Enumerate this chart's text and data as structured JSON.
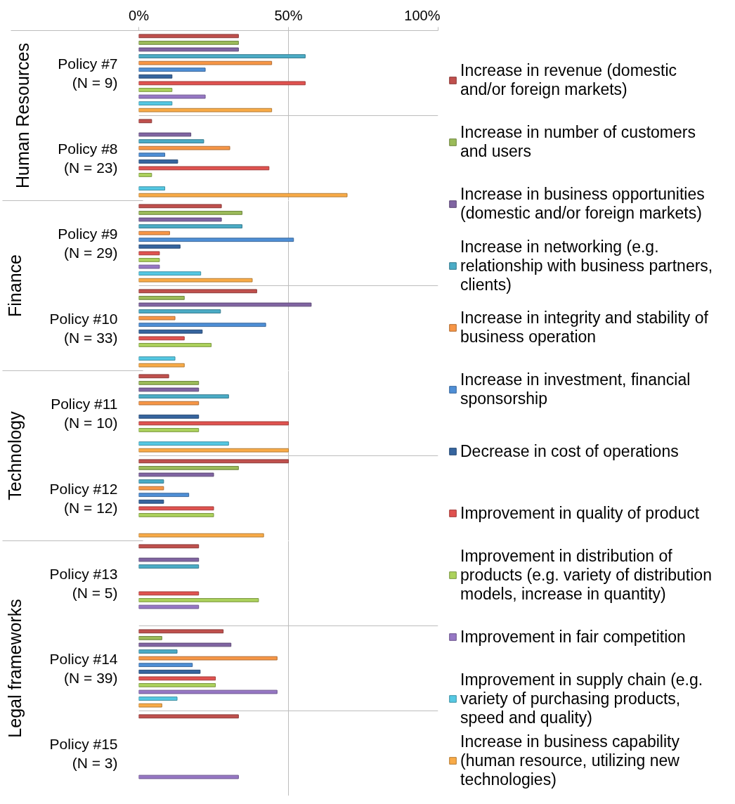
{
  "chart_data": [
    {
      "type": "bar",
      "orientation": "horizontal",
      "ylabel": "Human Resources",
      "categories": [
        "Policy #7 (N = 9)",
        "Policy #8 (N = 23)"
      ],
      "series": [
        {
          "name": "Increase in revenue (domestic and/or foreign markets)",
          "color": "#c0504d",
          "values": [
            33.3,
            4.3
          ]
        },
        {
          "name": "Increase in number of customers and users",
          "color": "#9bbb59",
          "values": [
            33.3,
            null
          ]
        },
        {
          "name": "Increase in business opportunities (domestic and/or foreign markets)",
          "color": "#8064a2",
          "values": [
            33.3,
            17.4
          ]
        },
        {
          "name": "Increase in networking (e.g. relationship with business partners, clients)",
          "color": "#4bacc6",
          "values": [
            55.6,
            21.7
          ]
        },
        {
          "name": "Increase in integrity and stability of business operation",
          "color": "#f79646",
          "values": [
            44.4,
            30.4
          ]
        },
        {
          "name": "Increase in investment, financial sponsorship",
          "color": "#4f8fd6",
          "values": [
            22.2,
            8.7
          ]
        },
        {
          "name": "Decrease in cost of operations",
          "color": "#36659f",
          "values": [
            11.1,
            13.0
          ]
        },
        {
          "name": "Improvement in quality of product",
          "color": "#e0524f",
          "values": [
            55.6,
            43.5
          ]
        },
        {
          "name": "Improvement in distribution of products (e.g. variety of distribution models, increase in quantity)",
          "color": "#acd25c",
          "values": [
            11.1,
            4.3
          ]
        },
        {
          "name": "Improvement in fair competition",
          "color": "#9677c4",
          "values": [
            22.2,
            null
          ]
        },
        {
          "name": "Improvement in supply chain (e.g. variety of purchasing products, speed and quality)",
          "color": "#55c8e3",
          "values": [
            11.1,
            8.7
          ]
        },
        {
          "name": "Increase in business capability (human resource, utilizing new technologies)",
          "color": "#f9ab47",
          "values": [
            44.4,
            69.6
          ]
        }
      ],
      "xlim": [
        0,
        100
      ],
      "xticks": [
        {
          "value": 0,
          "label": "0%"
        },
        {
          "value": 50,
          "label": "50%"
        },
        {
          "value": 100,
          "label": "100%"
        }
      ],
      "grid": true,
      "legend": "right"
    },
    {
      "type": "bar",
      "orientation": "horizontal",
      "ylabel": "Finance",
      "categories": [
        "Policy #9 (N = 29)",
        "Policy #10 (N = 33)"
      ],
      "series": [
        {
          "color": "#c0504d",
          "values": [
            27.6,
            39.4
          ]
        },
        {
          "color": "#9bbb59",
          "values": [
            34.5,
            15.2
          ]
        },
        {
          "color": "#8064a2",
          "values": [
            27.6,
            57.6
          ]
        },
        {
          "color": "#4bacc6",
          "values": [
            34.5,
            27.3
          ]
        },
        {
          "color": "#f79646",
          "values": [
            10.3,
            12.1
          ]
        },
        {
          "color": "#4f8fd6",
          "values": [
            51.7,
            42.4
          ]
        },
        {
          "color": "#36659f",
          "values": [
            13.8,
            21.2
          ]
        },
        {
          "color": "#e0524f",
          "values": [
            6.9,
            15.2
          ]
        },
        {
          "color": "#acd25c",
          "values": [
            6.9,
            24.2
          ]
        },
        {
          "color": "#9677c4",
          "values": [
            6.9,
            null
          ]
        },
        {
          "color": "#55c8e3",
          "values": [
            20.7,
            12.1
          ]
        },
        {
          "color": "#f9ab47",
          "values": [
            37.9,
            15.2
          ]
        }
      ],
      "xlim": [
        0,
        100
      ],
      "xticks": [
        0,
        50,
        100
      ],
      "grid": true,
      "tick_labels": "y"
    },
    {
      "type": "bar",
      "orientation": "horizontal",
      "ylabel": "Technology",
      "categories": [
        "Policy #11 (N = 10)",
        "Policy #12 (N = 12)"
      ],
      "series": [
        {
          "color": "#c0504d",
          "values": [
            10,
            50
          ]
        },
        {
          "color": "#9bbb59",
          "values": [
            20,
            33.3
          ]
        },
        {
          "color": "#8064a2",
          "values": [
            20,
            25
          ]
        },
        {
          "color": "#4bacc6",
          "values": [
            30,
            8.3
          ]
        },
        {
          "color": "#f79646",
          "values": [
            20,
            8.3
          ]
        },
        {
          "color": "#4f8fd6",
          "values": [
            null,
            16.7
          ]
        },
        {
          "color": "#36659f",
          "values": [
            20,
            8.3
          ]
        },
        {
          "color": "#e0524f",
          "values": [
            50,
            25
          ]
        },
        {
          "color": "#acd25c",
          "values": [
            20,
            25
          ]
        },
        {
          "color": "#9677c4",
          "values": [
            null,
            null
          ]
        },
        {
          "color": "#55c8e3",
          "values": [
            30,
            null
          ]
        },
        {
          "color": "#f9ab47",
          "values": [
            50,
            41.7
          ]
        }
      ],
      "xlim": [
        0,
        100
      ],
      "xticks": [
        0,
        50,
        100
      ],
      "grid": true,
      "tick_labels": "y"
    },
    {
      "type": "bar",
      "orientation": "horizontal",
      "ylabel": "Legal frameworks",
      "categories": [
        "Policy #13 (N = 5)",
        "Policy #14 (N = 39)",
        "Policy #15 (N = 3)"
      ],
      "series": [
        {
          "color": "#c0504d",
          "values": [
            20,
            28.2,
            33.3
          ]
        },
        {
          "color": "#9bbb59",
          "values": [
            null,
            7.7,
            null
          ]
        },
        {
          "color": "#8064a2",
          "values": [
            20,
            30.8,
            null
          ]
        },
        {
          "color": "#4bacc6",
          "values": [
            20,
            12.8,
            null
          ]
        },
        {
          "color": "#f79646",
          "values": [
            null,
            46.2,
            null
          ]
        },
        {
          "color": "#4f8fd6",
          "values": [
            null,
            17.9,
            null
          ]
        },
        {
          "color": "#36659f",
          "values": [
            null,
            20.5,
            null
          ]
        },
        {
          "color": "#e0524f",
          "values": [
            20,
            25.6,
            null
          ]
        },
        {
          "color": "#acd25c",
          "values": [
            40,
            25.6,
            null
          ]
        },
        {
          "color": "#9677c4",
          "values": [
            20,
            46.2,
            33.3
          ]
        },
        {
          "color": "#55c8e3",
          "values": [
            null,
            12.8,
            null
          ]
        },
        {
          "color": "#f9ab47",
          "values": [
            null,
            7.7,
            null
          ]
        }
      ],
      "xlim": [
        0,
        100
      ],
      "xticks": [
        0,
        50,
        100
      ],
      "grid": true,
      "tick_labels": "y"
    }
  ]
}
